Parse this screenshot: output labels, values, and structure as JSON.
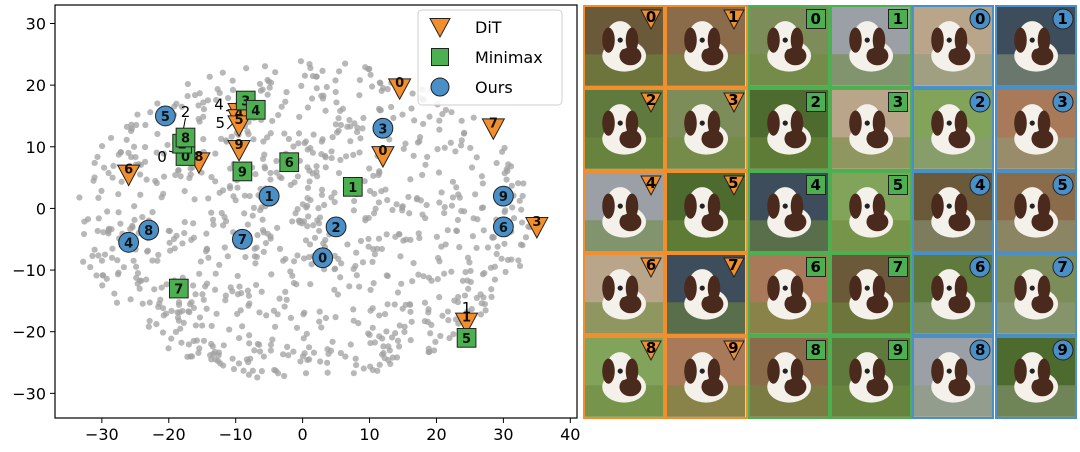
{
  "chart_data": {
    "type": "scatter",
    "title": "",
    "xlabel": "",
    "ylabel": "",
    "xlim": [
      -37,
      41
    ],
    "ylim": [
      -34,
      33
    ],
    "xticks": [
      -30,
      -20,
      -10,
      0,
      10,
      20,
      30,
      40
    ],
    "yticks": [
      -30,
      -20,
      -10,
      0,
      10,
      20,
      30
    ],
    "grid": false,
    "legend": {
      "position": "top-right",
      "entries": [
        "DiT",
        "Minimax",
        "Ours"
      ]
    },
    "series": [
      {
        "name": "DiT",
        "marker": "triangle-down",
        "color": "#f28e2b",
        "points": [
          {
            "label": "0",
            "x": 14.5,
            "y": 19.5
          },
          {
            "label": "1",
            "x": 24.5,
            "y": -18.5
          },
          {
            "label": "2",
            "x": -9.5,
            "y": 15.5
          },
          {
            "label": "3",
            "x": 35,
            "y": -3
          },
          {
            "label": "4",
            "x": -9.5,
            "y": 14.5
          },
          {
            "label": "5",
            "x": -9.5,
            "y": 13.5
          },
          {
            "label": "6",
            "x": -26,
            "y": 5.5
          },
          {
            "label": "7",
            "x": 28.5,
            "y": 13
          },
          {
            "label": "8",
            "x": -15.5,
            "y": 7.5
          },
          {
            "label": "9",
            "x": -9.5,
            "y": 9.5
          },
          {
            "label": "0",
            "x": 12,
            "y": 8.5
          }
        ]
      },
      {
        "name": "Minimax",
        "marker": "square",
        "color": "#4caf50",
        "points": [
          {
            "label": "0",
            "x": -17.5,
            "y": 8.5
          },
          {
            "label": "1",
            "x": 7.5,
            "y": 3.5
          },
          {
            "label": "2",
            "x": -18,
            "y": 10.5
          },
          {
            "label": "3",
            "x": -8.5,
            "y": 17.5
          },
          {
            "label": "4",
            "x": -7,
            "y": 16
          },
          {
            "label": "5",
            "x": 24.5,
            "y": -21
          },
          {
            "label": "6",
            "x": -2,
            "y": 7.5
          },
          {
            "label": "7",
            "x": -18.5,
            "y": -13
          },
          {
            "label": "8",
            "x": -17.5,
            "y": 11.5
          },
          {
            "label": "9",
            "x": -9,
            "y": 6
          }
        ]
      },
      {
        "name": "Ours",
        "marker": "circle",
        "color": "#4a90c8",
        "points": [
          {
            "label": "0",
            "x": 3,
            "y": -8
          },
          {
            "label": "1",
            "x": -5,
            "y": 2
          },
          {
            "label": "2",
            "x": 5,
            "y": -3
          },
          {
            "label": "3",
            "x": 12,
            "y": 13
          },
          {
            "label": "4",
            "x": -26,
            "y": -5.5
          },
          {
            "label": "5",
            "x": -20.5,
            "y": 15
          },
          {
            "label": "6",
            "x": 30,
            "y": -3
          },
          {
            "label": "7",
            "x": -9,
            "y": -5
          },
          {
            "label": "8",
            "x": -23,
            "y": -3.5
          },
          {
            "label": "9",
            "x": 30,
            "y": 2
          }
        ]
      }
    ],
    "annotations": [
      {
        "text": "0",
        "target": "Minimax 0",
        "x": -21,
        "y": 8.5
      },
      {
        "text": "1",
        "target": "DiT 1",
        "x": 24.5,
        "y": -16
      },
      {
        "text": "2",
        "target": "Minimax 2",
        "x": -17.5,
        "y": 15.8
      },
      {
        "text": "4",
        "target": "DiT 4",
        "x": -12.5,
        "y": 17
      },
      {
        "text": "5",
        "target": "DiT 5",
        "x": -12.3,
        "y": 14
      }
    ]
  },
  "image_grid": {
    "groups": [
      {
        "name": "DiT",
        "color": "#f28e2b",
        "marker": "triangle-down",
        "labels": [
          "0",
          "1",
          "2",
          "3",
          "4",
          "5",
          "6",
          "7",
          "8",
          "9"
        ]
      },
      {
        "name": "Minimax",
        "color": "#4caf50",
        "marker": "square",
        "labels": [
          "0",
          "1",
          "2",
          "3",
          "4",
          "5",
          "6",
          "7",
          "8",
          "9"
        ]
      },
      {
        "name": "Ours",
        "color": "#4a90c8",
        "marker": "circle",
        "labels": [
          "0",
          "1",
          "2",
          "3",
          "4",
          "5",
          "6",
          "7",
          "8",
          "9"
        ]
      }
    ]
  }
}
